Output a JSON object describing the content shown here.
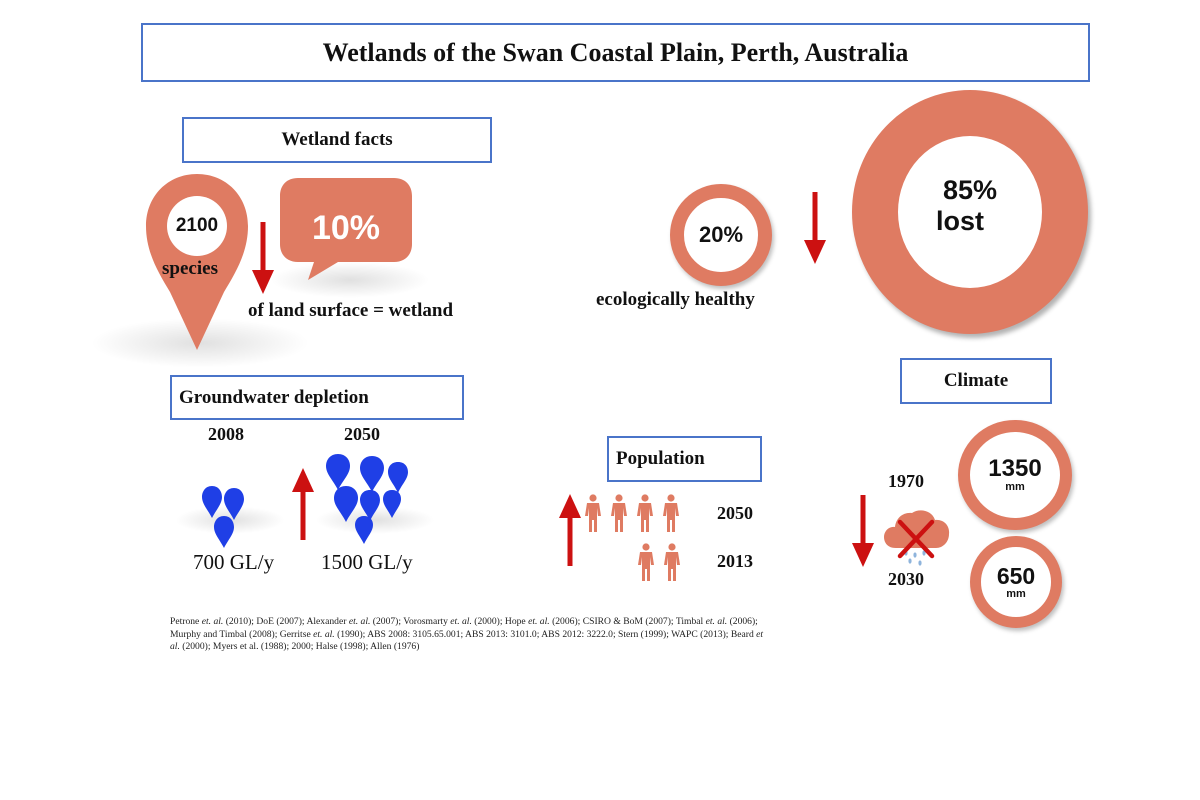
{
  "title": "Wetlands of the Swan Coastal Plain, Perth, Australia",
  "wetland_facts": {
    "heading": "Wetland facts",
    "species_count": "2100",
    "species_label": "species",
    "land_percent": "10%",
    "land_label": "of land surface = wetland",
    "healthy_percent": "20%",
    "healthy_label": "ecologically healthy",
    "lost_percent": "85%",
    "lost_label": "lost"
  },
  "groundwater": {
    "heading": "Groundwater depletion",
    "year_2008": "2008",
    "year_2050": "2050",
    "value_2008": "700 GL/y",
    "value_2050": "1500 GL/y"
  },
  "population": {
    "heading": "Population",
    "year_2050": "2050",
    "year_2013": "2013"
  },
  "climate": {
    "heading": "Climate",
    "year_1970": "1970",
    "year_2030": "2030",
    "rain_1970": "1350",
    "rain_2030": "650",
    "unit": "mm"
  },
  "references": {
    "line1_a": "Petrone ",
    "et": "et. al.",
    "line1_b": " (2010); DoE (2007); Alexander ",
    "line1_c": " (2007); Vorosmarty ",
    "line1_d": " (2000); Hope ",
    "line1_e": " (2006); CSIRO & BoM (2007); Timbal ",
    "line1_f": " (2006);",
    "line2_a": "Murphy and Timbal (2008); Gerritse ",
    "line2_b": " (1990); ABS 2008: 3105.65.001; ABS 2013: 3101.0; ABS 2012: 3222.0; Stern (1999); WAPC (2013); Beard ",
    "et_split": "et",
    "line3_al": "al.",
    "line3_b": " (2000); Myers et al. (1988); 2000; Halse (1998); Allen (1976)"
  },
  "colors": {
    "accent": "#df7b62",
    "arrow": "#cc1111",
    "border": "#4a74c9",
    "drop": "#1f3fe6"
  }
}
